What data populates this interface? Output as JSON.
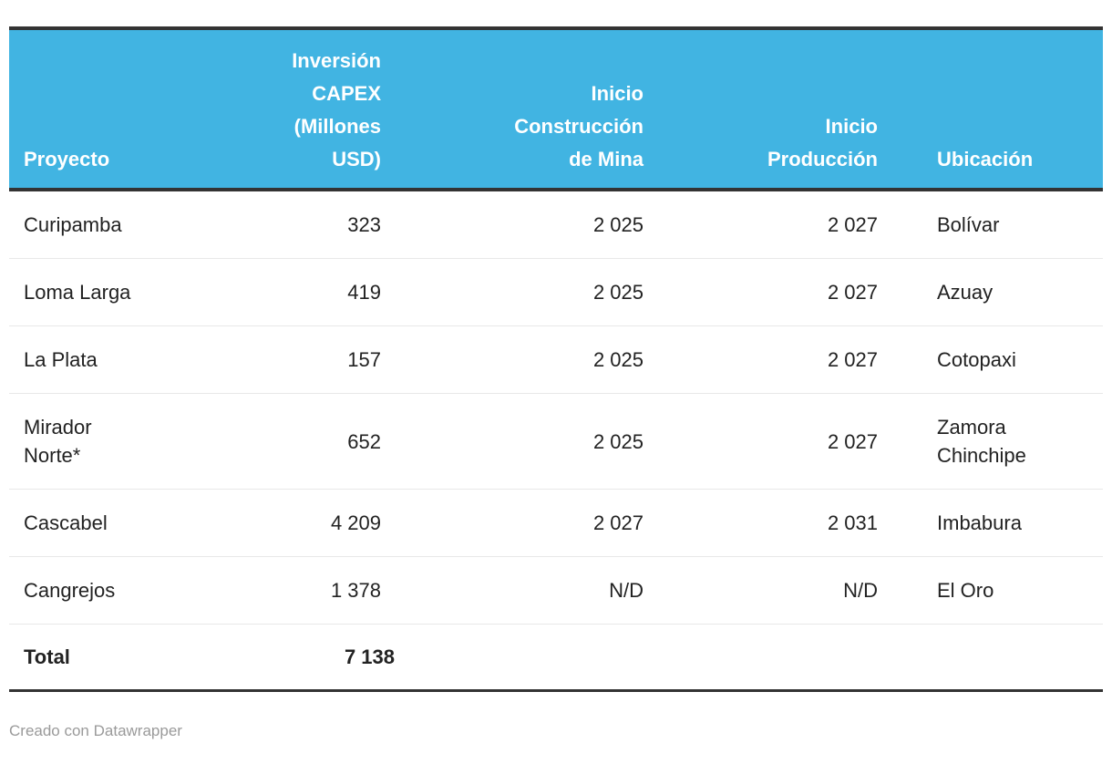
{
  "colors": {
    "header_bg": "#41b4e2",
    "header_text": "#ffffff",
    "border_dark": "#333333",
    "row_separator": "#e8e8e8",
    "body_text": "#222222",
    "footer_text": "#9a9a9a"
  },
  "table": {
    "columns": [
      {
        "label": "Proyecto",
        "align": "left"
      },
      {
        "label": "Inversión\nCAPEX\n(Millones\nUSD)",
        "align": "right"
      },
      {
        "label": "Inicio\nConstrucción\nde Mina",
        "align": "right"
      },
      {
        "label": "Inicio\nProducción",
        "align": "right"
      },
      {
        "label": "Ubicación",
        "align": "left"
      }
    ],
    "rows": [
      {
        "proyecto": "Curipamba",
        "capex": "323",
        "construccion": "2 025",
        "produccion": "2 027",
        "ubicacion": "Bolívar"
      },
      {
        "proyecto": "Loma Larga",
        "capex": "419",
        "construccion": "2 025",
        "produccion": "2 027",
        "ubicacion": "Azuay"
      },
      {
        "proyecto": "La Plata",
        "capex": "157",
        "construccion": "2 025",
        "produccion": "2 027",
        "ubicacion": "Cotopaxi"
      },
      {
        "proyecto": "Mirador\nNorte*",
        "capex": "652",
        "construccion": "2 025",
        "produccion": "2 027",
        "ubicacion": "Zamora\nChinchipe"
      },
      {
        "proyecto": "Cascabel",
        "capex": "4 209",
        "construccion": "2 027",
        "produccion": "2 031",
        "ubicacion": "Imbabura"
      },
      {
        "proyecto": "Cangrejos",
        "capex": "1 378",
        "construccion": "N/D",
        "produccion": "N/D",
        "ubicacion": "El Oro"
      }
    ],
    "total_row": {
      "proyecto": "Total",
      "capex": "7 138",
      "construccion": "",
      "produccion": "",
      "ubicacion": ""
    }
  },
  "footer": {
    "credit": "Creado con Datawrapper"
  },
  "chart_data": {
    "type": "table",
    "title": "",
    "columns": [
      "Proyecto",
      "Inversión CAPEX (Millones USD)",
      "Inicio Construcción de Mina",
      "Inicio Producción",
      "Ubicación"
    ],
    "rows": [
      [
        "Curipamba",
        323,
        "2 025",
        "2 027",
        "Bolívar"
      ],
      [
        "Loma Larga",
        419,
        "2 025",
        "2 027",
        "Azuay"
      ],
      [
        "La Plata",
        157,
        "2 025",
        "2 027",
        "Cotopaxi"
      ],
      [
        "Mirador Norte*",
        652,
        "2 025",
        "2 027",
        "Zamora Chinchipe"
      ],
      [
        "Cascabel",
        4209,
        "2 027",
        "2 031",
        "Imbabura"
      ],
      [
        "Cangrejos",
        1378,
        "N/D",
        "N/D",
        "El Oro"
      ],
      [
        "Total",
        7138,
        "",
        "",
        ""
      ]
    ],
    "layout_hints": {
      "header_background": "#41b4e2",
      "numeric_thousands_separator": "space",
      "total_row_bold": true,
      "footer_credit": "Creado con Datawrapper"
    }
  }
}
